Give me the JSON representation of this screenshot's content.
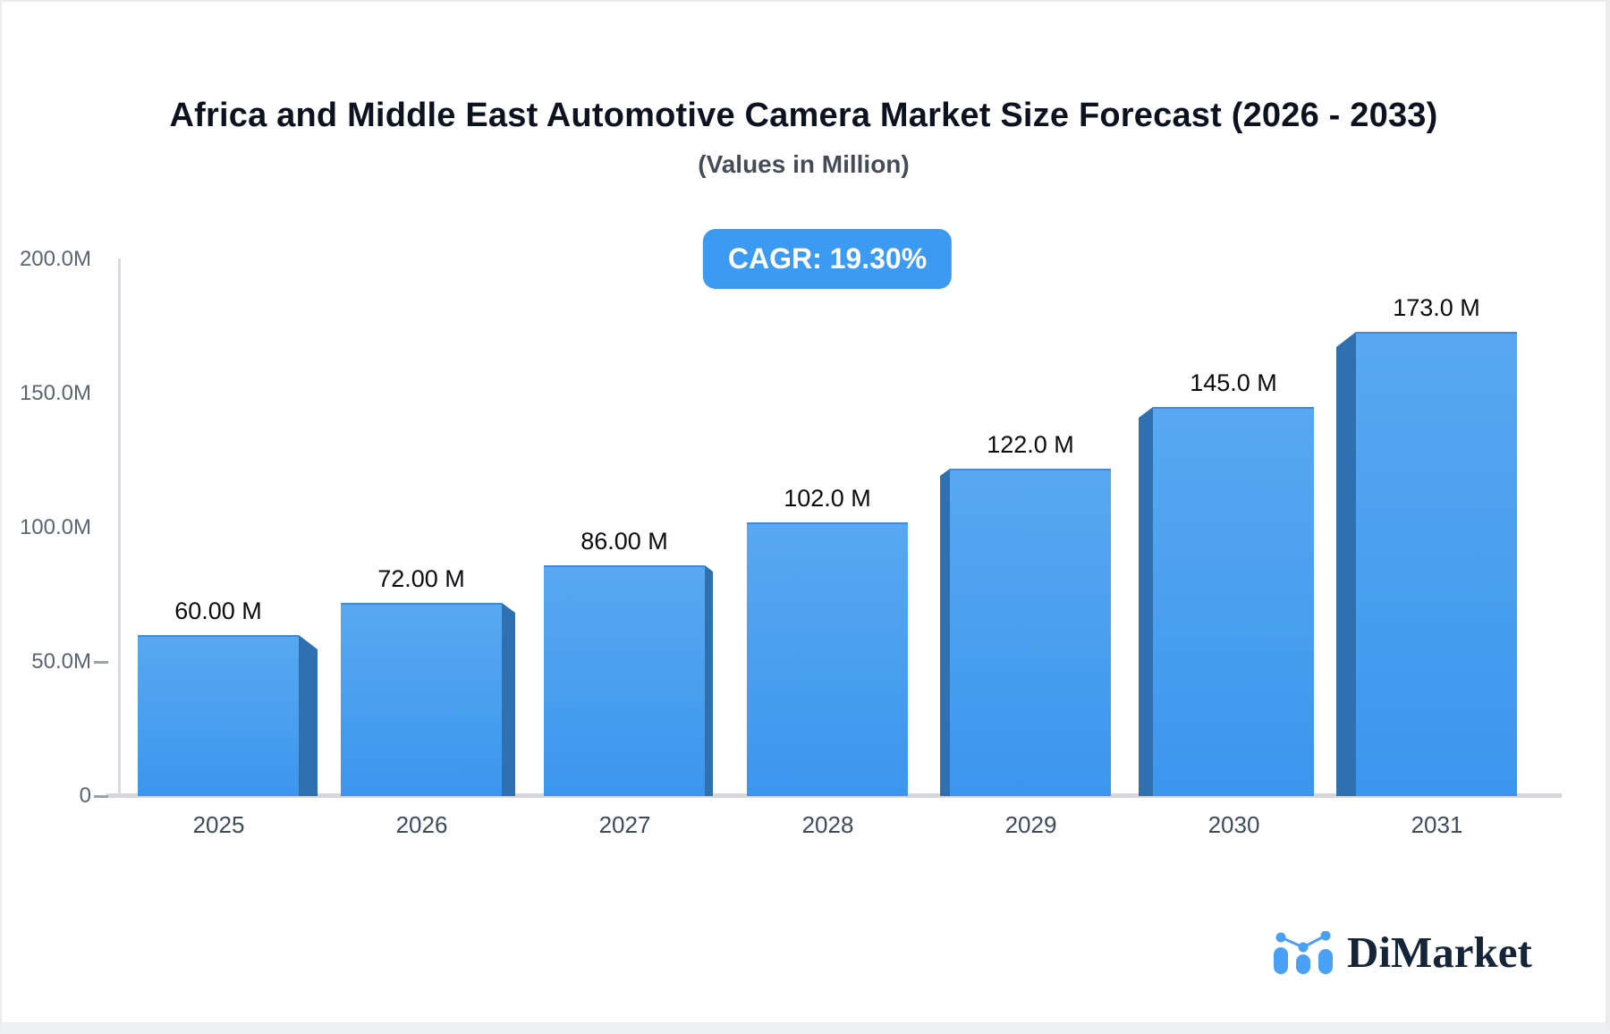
{
  "chart_data": {
    "type": "bar",
    "title": "Africa and Middle East Automotive Camera Market Size Forecast (2026 - 2033)",
    "subtitle": "(Values in Million)",
    "cagr_label": "CAGR: 19.30%",
    "categories": [
      "2025",
      "2026",
      "2027",
      "2028",
      "2029",
      "2030",
      "2031"
    ],
    "values": [
      60,
      72,
      86,
      102,
      122,
      145,
      173
    ],
    "value_labels": [
      "60.00 M",
      "72.00 M",
      "86.00 M",
      "102.0 M",
      "122.0 M",
      "145.0 M",
      "173.0 M"
    ],
    "xlabel": "",
    "ylabel": "",
    "ylim": [
      0,
      200
    ],
    "grid": false,
    "legend": false,
    "y_ticks": [
      {
        "label": "200.0M",
        "value": 200
      },
      {
        "label": "150.0M",
        "value": 150
      },
      {
        "label": "100.0M",
        "value": 100
      },
      {
        "label": "50.0M",
        "value": 50
      },
      {
        "label": "0",
        "value": 0
      }
    ],
    "colors": {
      "bar_face_top": "#58a8f1",
      "bar_face_bottom": "#3c96ee",
      "bar_side": "#2f70b1",
      "bar_top_edge": "#4389d6",
      "badge_bg": "#3d9af3",
      "badge_text": "#ffffff",
      "axis_line": "#d9dbe0"
    }
  },
  "brand": {
    "name": "DiMarket",
    "icon": "bar-chart-trend-logo-icon",
    "icon_color": "#4aa0f5",
    "name_color": "#16243a"
  }
}
